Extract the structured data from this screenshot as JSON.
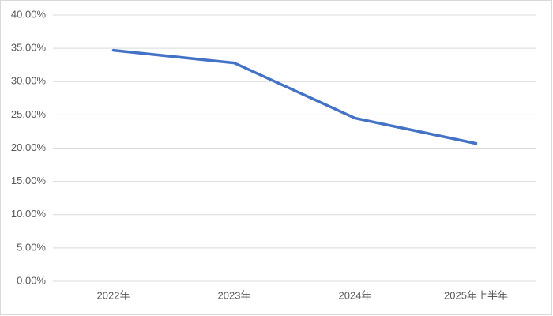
{
  "chart_data": {
    "type": "line",
    "categories": [
      "2022年",
      "2023年",
      "2024年",
      "2025年上半年"
    ],
    "series": [
      {
        "color": "#4472c4",
        "values": [
          34.7,
          32.8,
          24.5,
          20.7
        ]
      }
    ],
    "ylim": [
      0,
      40
    ],
    "yticks": [
      {
        "value": 0,
        "label": "0.00%"
      },
      {
        "value": 5,
        "label": "5.00%"
      },
      {
        "value": 10,
        "label": "10.00%"
      },
      {
        "value": 15,
        "label": "15.00%"
      },
      {
        "value": 20,
        "label": "20.00%"
      },
      {
        "value": 25,
        "label": "25.00%"
      },
      {
        "value": 30,
        "label": "30.00%"
      },
      {
        "value": 35,
        "label": "35.00%"
      },
      {
        "value": 40,
        "label": "40.00%"
      }
    ],
    "grid": true
  }
}
